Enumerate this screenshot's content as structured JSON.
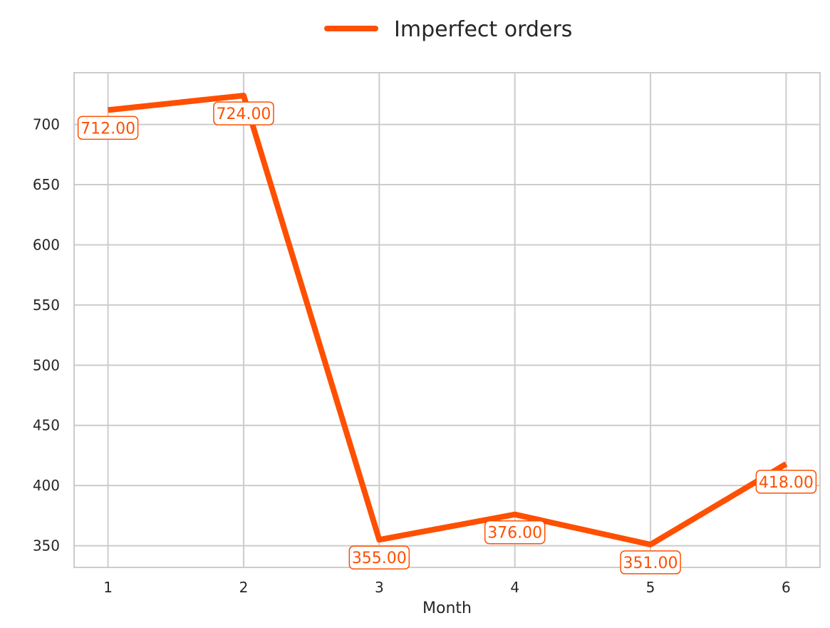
{
  "chart_data": {
    "type": "line",
    "xlabel": "Month",
    "ylabel": "",
    "x": [
      1,
      2,
      3,
      4,
      5,
      6
    ],
    "xlim": [
      0.75,
      6.25
    ],
    "ylim": [
      332,
      743
    ],
    "y_ticks": [
      350,
      400,
      450,
      500,
      550,
      600,
      650,
      700
    ],
    "grid": true,
    "legend_position": "top-center",
    "series": [
      {
        "name": "Imperfect orders",
        "color": "#FF4F00",
        "values": [
          712,
          724,
          355,
          376,
          351,
          418
        ],
        "data_labels": [
          "712.00",
          "724.00",
          "355.00",
          "376.00",
          "351.00",
          "418.00"
        ]
      }
    ]
  }
}
